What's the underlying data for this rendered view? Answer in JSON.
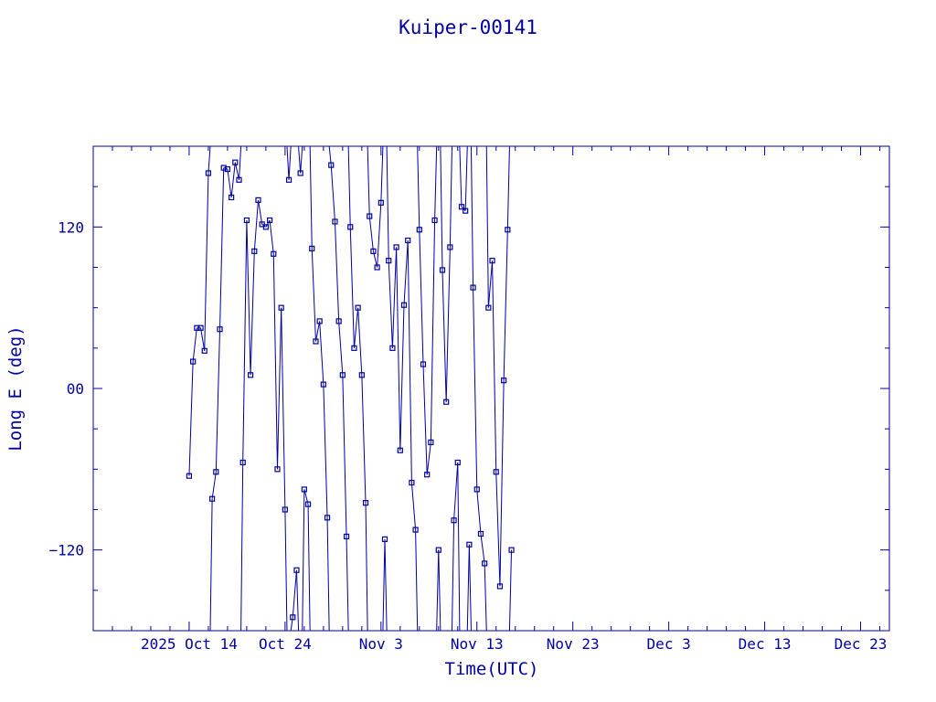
{
  "chart_data": {
    "type": "scatter",
    "title": "Kuiper-00141",
    "xlabel": "Time(UTC)",
    "ylabel": "Long E (deg)",
    "x_ticks": [
      "2025 Oct 14",
      "Oct 24",
      "Nov  3",
      "Nov 13",
      "Nov 23",
      "Dec  3",
      "Dec 13",
      "Dec 23"
    ],
    "y_ticks": [
      "−120",
      "00",
      "120"
    ],
    "xlim": [
      "2025-10-04",
      "2025-12-26"
    ],
    "ylim": [
      -180,
      180
    ],
    "grid": false,
    "color": "#0000a0",
    "series": [
      {
        "x_start": "2025-10-14",
        "x_step_days": 0.4,
        "y": [
          -65,
          20,
          45,
          45,
          28,
          160,
          -82,
          -62,
          44,
          164,
          163,
          142,
          168,
          155,
          -55,
          125,
          10,
          102,
          140,
          122,
          120,
          125,
          100,
          -60,
          60,
          -90,
          155,
          -170,
          -135,
          160,
          -75,
          -86,
          104,
          35,
          50,
          3,
          -96,
          166,
          124,
          50,
          10,
          -110,
          120,
          30,
          60,
          10,
          -85,
          128,
          102,
          90,
          138,
          -112,
          95,
          30,
          105,
          -46,
          62,
          110,
          -70,
          -105,
          118,
          18,
          -64,
          -40,
          125,
          -120,
          88,
          -10,
          105,
          -98,
          -55,
          135,
          132,
          -116,
          75,
          -75,
          -108,
          -130,
          60,
          95,
          -62,
          -147,
          6,
          118,
          -120
        ]
      }
    ]
  }
}
